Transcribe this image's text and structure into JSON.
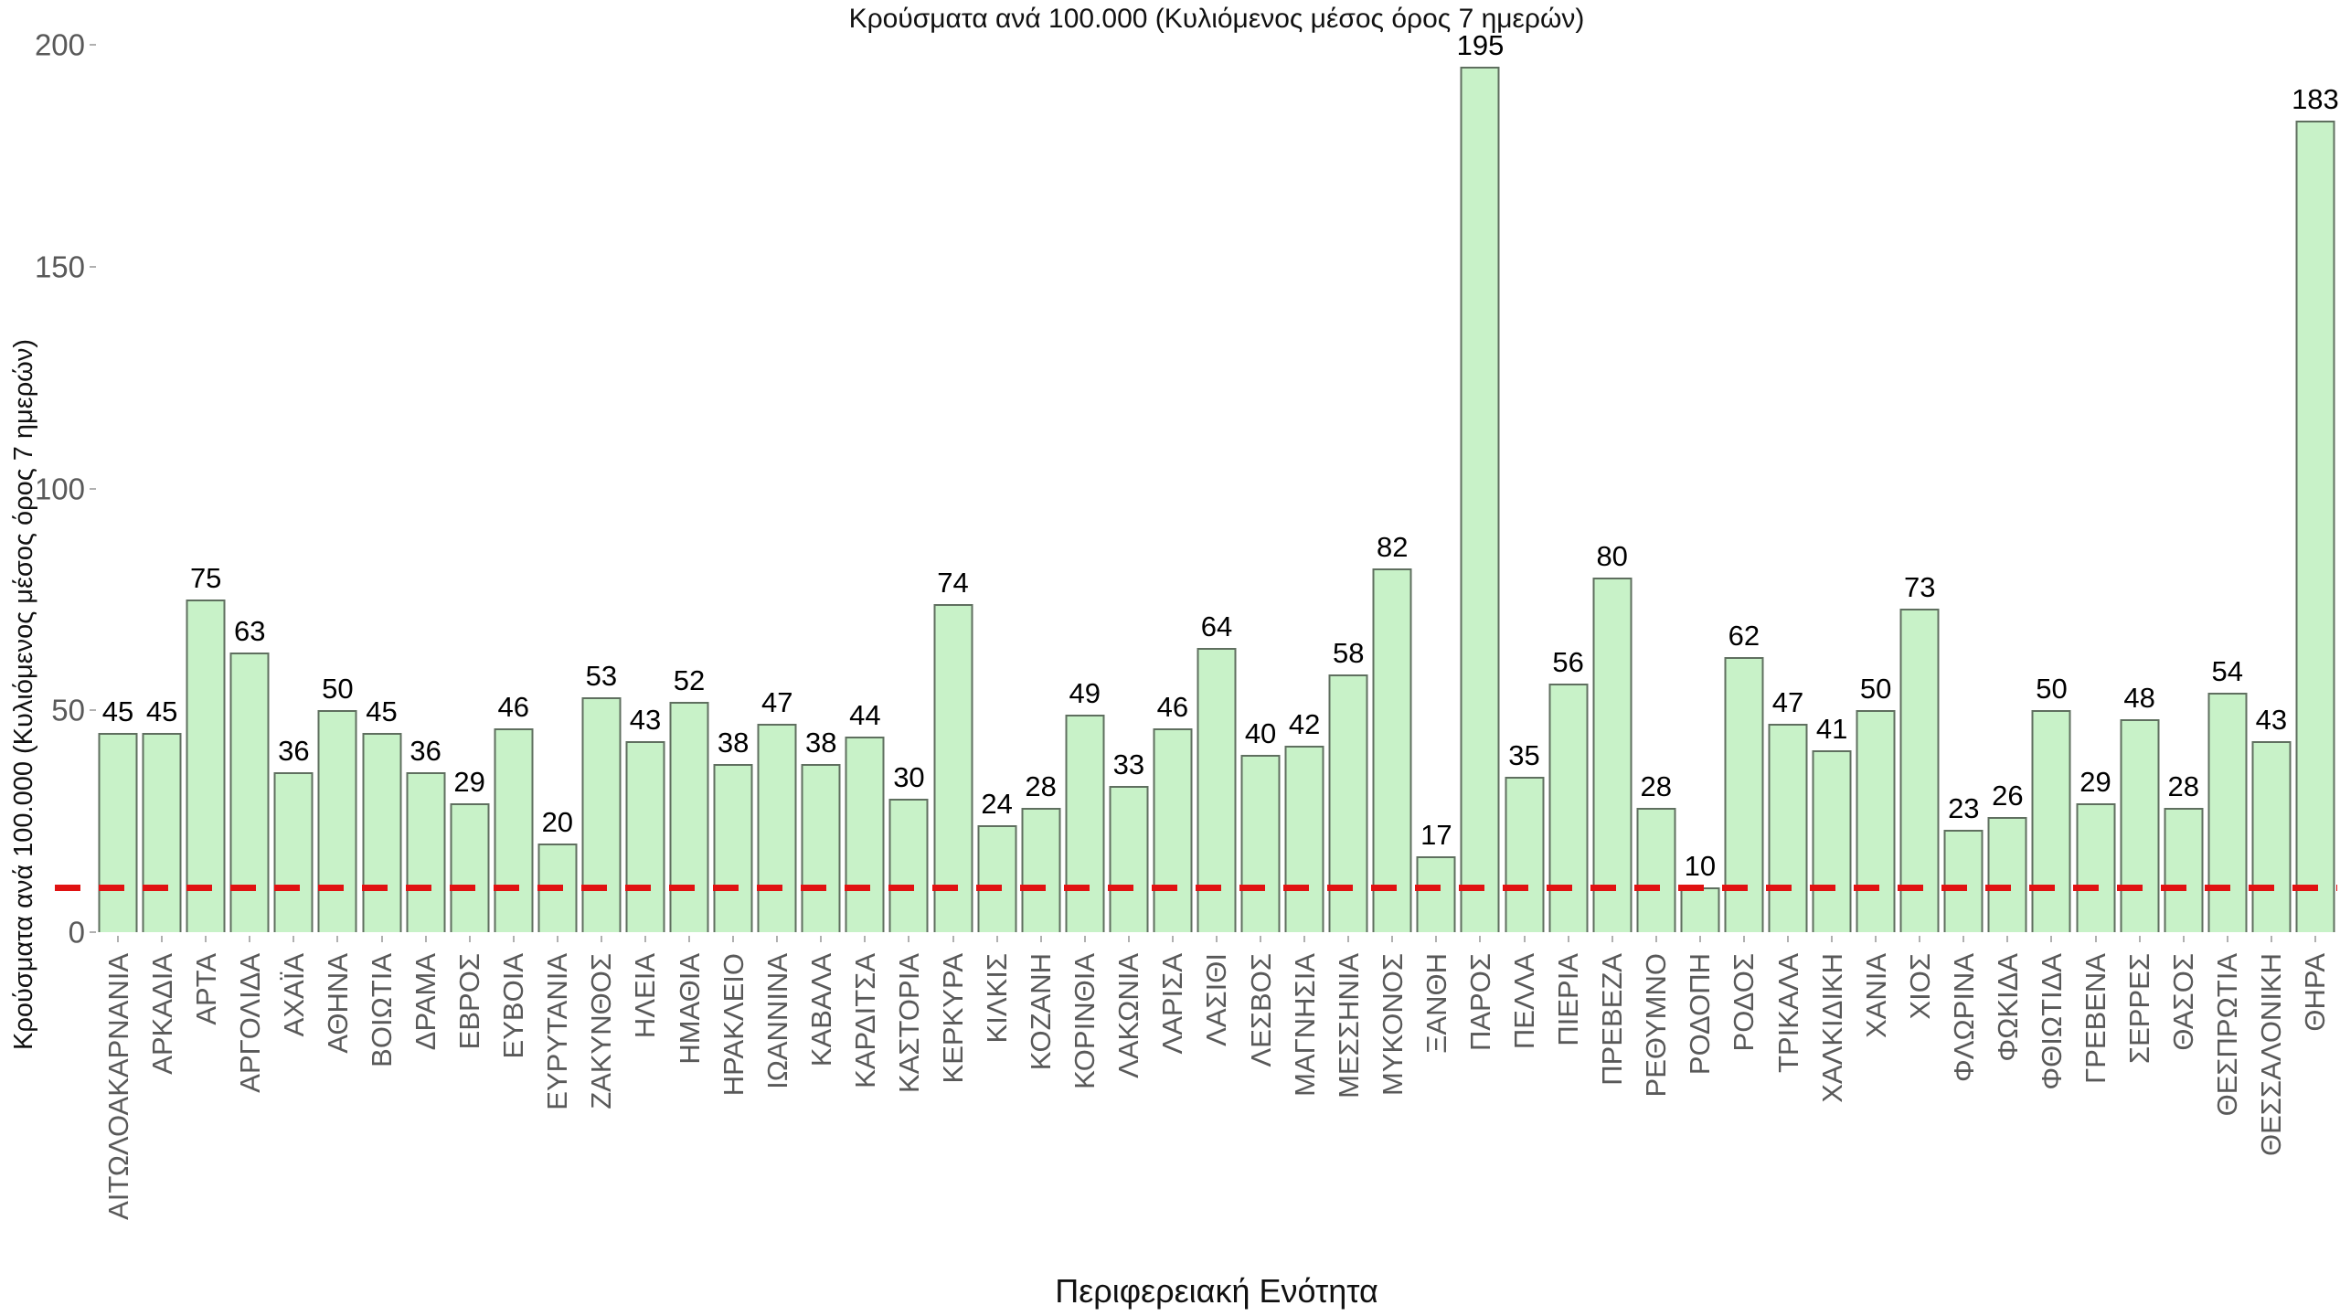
{
  "title": "Κρούσματα ανά 100.000 (Κυλιόμενος μέσος όρος 7 ημερών)",
  "chart_data": {
    "type": "bar",
    "title": "Κρούσματα ανά 100.000 (Κυλιόμενος μέσος όρος 7 ημερών)",
    "xlabel": "Περιφερειακή Ενότητα",
    "ylabel": "Κρούσματα ανά 100.000 (Κυλιόμενος μέσος όρος 7 ημερών)",
    "categories": [
      "ΑΙΤΩΛΟΑΚΑΡΝΑΝΙΑ",
      "ΑΡΚΑΔΙΑ",
      "ΑΡΤΑ",
      "ΑΡΓΟΛΙΔΑ",
      "ΑΧΑΪΑ",
      "ΑΘΗΝΑ",
      "ΒΟΙΩΤΙΑ",
      "ΔΡΑΜΑ",
      "ΕΒΡΟΣ",
      "ΕΥΒΟΙΑ",
      "ΕΥΡΥΤΑΝΙΑ",
      "ΖΑΚΥΝΘΟΣ",
      "ΗΛΕΙΑ",
      "ΗΜΑΘΙΑ",
      "ΗΡΑΚΛΕΙΟ",
      "ΙΩΑΝΝΙΝΑ",
      "ΚΑΒΑΛΑ",
      "ΚΑΡΔΙΤΣΑ",
      "ΚΑΣΤΟΡΙΑ",
      "ΚΕΡΚΥΡΑ",
      "ΚΙΛΚΙΣ",
      "ΚΟΖΑΝΗ",
      "ΚΟΡΙΝΘΙΑ",
      "ΛΑΚΩΝΙΑ",
      "ΛΑΡΙΣΑ",
      "ΛΑΣΙΘΙ",
      "ΛΕΣΒΟΣ",
      "ΜΑΓΝΗΣΙΑ",
      "ΜΕΣΣΗΝΙΑ",
      "ΜΥΚΟΝΟΣ",
      "ΞΑΝΘΗ",
      "ΠΑΡΟΣ",
      "ΠΕΛΛΑ",
      "ΠΙΕΡΙΑ",
      "ΠΡΕΒΕΖΑ",
      "ΡΕΘΥΜΝΟ",
      "ΡΟΔΟΠΗ",
      "ΡΟΔΟΣ",
      "ΤΡΙΚΑΛΑ",
      "ΧΑΛΚΙΔΙΚΗ",
      "ΧΑΝΙΑ",
      "ΧΙΟΣ",
      "ΦΛΩΡΙΝΑ",
      "ΦΩΚΙΔΑ",
      "ΦΘΙΩΤΙΔΑ",
      "ΓΡΕΒΕΝΑ",
      "ΣΕΡΡΕΣ",
      "ΘΑΣΟΣ",
      "ΘΕΣΠΡΩΤΙΑ",
      "ΘΕΣΣΑΛΟΝΙΚΗ",
      "ΘΗΡΑ"
    ],
    "values": [
      45,
      45,
      75,
      63,
      36,
      50,
      45,
      36,
      29,
      46,
      20,
      53,
      43,
      52,
      38,
      47,
      38,
      44,
      30,
      74,
      24,
      28,
      49,
      33,
      46,
      64,
      40,
      42,
      58,
      82,
      17,
      195,
      35,
      56,
      80,
      28,
      10,
      62,
      47,
      41,
      50,
      73,
      23,
      26,
      50,
      29,
      48,
      28,
      54,
      43,
      183
    ],
    "ylim": [
      0,
      200
    ],
    "yticks": [
      0,
      50,
      100,
      150,
      200
    ],
    "grid": false,
    "legend": null,
    "reference_line": {
      "y": 10,
      "style": "dashed",
      "color": "#e01212"
    },
    "colors": {
      "bar_fill": "#c8f2c8",
      "bar_border": "#5f6f5f",
      "tick_label": "#595959",
      "value_label": "#000000",
      "reference_line": "#e01212",
      "background": "#ffffff"
    }
  }
}
